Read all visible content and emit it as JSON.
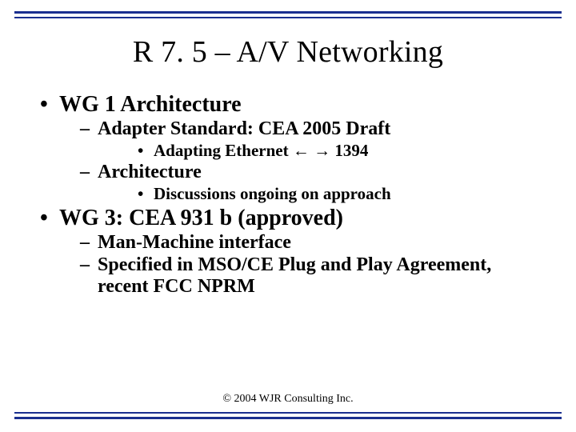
{
  "colors": {
    "rule": "#1a2f8f",
    "background": "#ffffff",
    "page_bg": "#e8e8e8",
    "text": "#000000"
  },
  "typography": {
    "family": "Times New Roman",
    "title_size_pt": 38,
    "level1_size_pt": 28,
    "level2_size_pt": 24,
    "level3_size_pt": 21,
    "footer_size_pt": 14,
    "body_weight": "bold"
  },
  "title": "R 7. 5 – A/V Networking",
  "bullets": {
    "wg1": {
      "label": "WG 1 Architecture",
      "adapter_standard": {
        "label": "Adapter Standard: CEA 2005 Draft",
        "sub": {
          "prefix": "Adapting Ethernet ",
          "arrows": "ç è",
          "arrow_left": "←",
          "arrow_right": "→",
          "suffix": " 1394"
        }
      },
      "architecture": {
        "label": "Architecture",
        "sub": "Discussions ongoing on approach"
      }
    },
    "wg3": {
      "label": "WG 3: CEA 931 b (approved)",
      "mmi": "Man-Machine interface",
      "spec": "Specified in MSO/CE Plug and Play Agreement, recent FCC NPRM"
    }
  },
  "footer": "© 2004 WJR Consulting Inc."
}
